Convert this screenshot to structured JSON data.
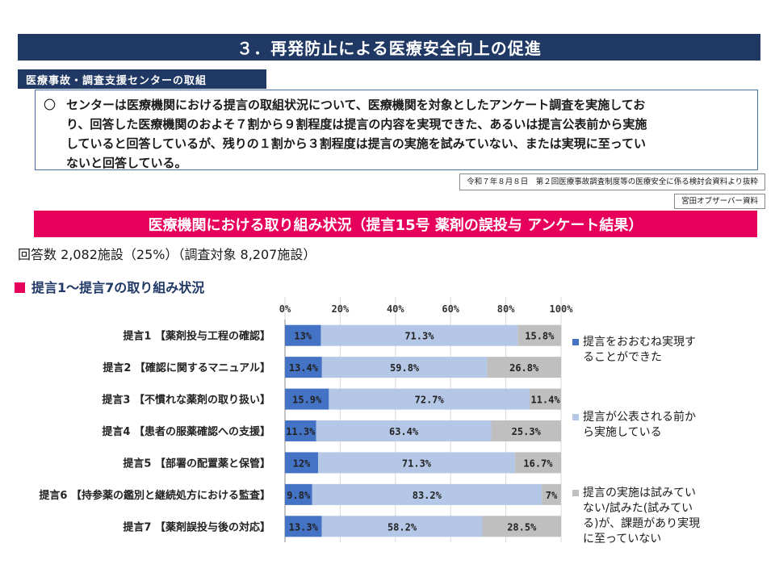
{
  "header": {
    "title": "３．再発防止による医療安全向上の促進",
    "section_tab": "医療事故・調査支援センターの取組"
  },
  "summary": {
    "bullet": "〇",
    "lines": [
      "センターは医療機関における提言の取組状況について、医療機関を対象としたアンケート調査を実施してお",
      "り、回答した医療機関のおよそ７割から９割程度は提言の内容を実現できた、あるいは提言公表前から実施",
      "していると回答しているが、残りの１割から３割程度は提言の実施を試みていない、または実現に至ってい",
      "ないと回答している。"
    ]
  },
  "sources": {
    "meeting": "令和７年８月８日　第２回医療事故調査制度等の医療安全に係る検討会資料より抜粋",
    "author": "宮田オブザーバー資料"
  },
  "banner": "医療機関における取り組み状況（提言15号 薬剤の誤投与 アンケート結果）",
  "responses_line": "回答数 2,082施設（25%）（調査対象 8,207施設）",
  "subheading": "提言1～提言7の取り組み状況",
  "colors": {
    "navy": "#1f3864",
    "pink": "#e6005c",
    "s1": "#4472c4",
    "s2": "#b4c7e7",
    "s3": "#bfbfbf"
  },
  "chart_data": {
    "type": "bar",
    "orientation": "horizontal",
    "stacked": true,
    "xlim": [
      0,
      100
    ],
    "x_ticks": [
      "0%",
      "20%",
      "40%",
      "60%",
      "80%",
      "100%"
    ],
    "grid": true,
    "legend_placement": "right",
    "categories": [
      "提言1 【薬剤投与工程の確認】",
      "提言2 【確認に関するマニュアル】",
      "提言3 【不慣れな薬剤の取り扱い】",
      "提言4 【患者の服薬確認への支援】",
      "提言5 【部署の配置薬と保管】",
      "提言6 【持参薬の鑑別と継続処方における監査】",
      "提言7 【薬剤誤投与後の対応】"
    ],
    "series": [
      {
        "name": "提言をおおむね実現することができた",
        "legend_lines": [
          "提言をおおむね実現す",
          "ることができた"
        ],
        "color": "#4472c4",
        "values": [
          13,
          13.4,
          15.9,
          11.3,
          12,
          9.8,
          13.3
        ],
        "labels": [
          "13%",
          "13.4%",
          "15.9%",
          "11.3%",
          "12%",
          "9.8%",
          "13.3%"
        ]
      },
      {
        "name": "提言が公表される前から実施している",
        "legend_lines": [
          "提言が公表される前か",
          "ら実施している"
        ],
        "color": "#b4c7e7",
        "values": [
          71.3,
          59.8,
          72.7,
          63.4,
          71.3,
          83.2,
          58.2
        ],
        "labels": [
          "71.3%",
          "59.8%",
          "72.7%",
          "63.4%",
          "71.3%",
          "83.2%",
          "58.2%"
        ]
      },
      {
        "name": "提言の実施は試みていない/試みた(試みている)が、課題があり実現に至っていない",
        "legend_lines": [
          "提言の実施は試みてい",
          "ない/試みた(試みてい",
          "る)が、課題があり実現",
          "に至っていない"
        ],
        "color": "#bfbfbf",
        "values": [
          15.8,
          26.8,
          11.4,
          25.3,
          16.7,
          7,
          28.5
        ],
        "labels": [
          "15.8%",
          "26.8%",
          "11.4%",
          "25.3%",
          "16.7%",
          "7%",
          "28.5%"
        ]
      }
    ]
  }
}
